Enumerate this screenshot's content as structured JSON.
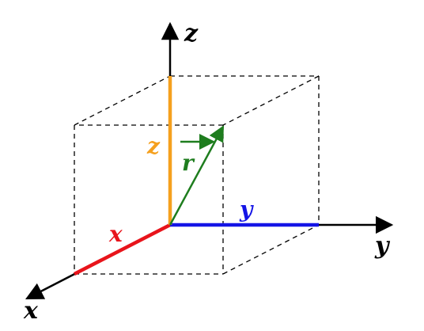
{
  "axes": {
    "x_label": "x",
    "y_label": "y",
    "z_label": "z"
  },
  "components": {
    "x_label": "x",
    "y_label": "y",
    "z_label": "z"
  },
  "vector": {
    "label": "r"
  },
  "colors": {
    "axis": "#000000",
    "box_edges": "#000000",
    "x_component": "#e8141b",
    "y_component": "#1414e6",
    "z_component": "#f5a01e",
    "vector_r": "#1e7d1e"
  }
}
